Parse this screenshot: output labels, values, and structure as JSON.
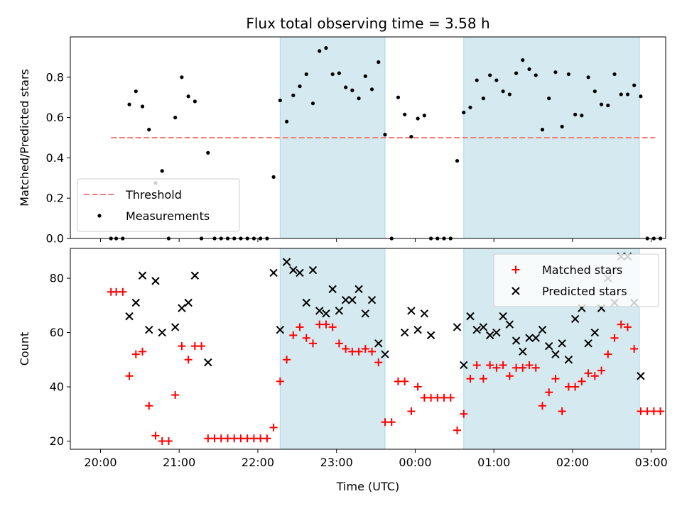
{
  "chart_data": {
    "title": "Flux total observing time = 3.58 h",
    "xlabel": "Time (UTC)",
    "x_ticks": [
      "20:00",
      "21:00",
      "22:00",
      "23:00",
      "00:00",
      "01:00",
      "02:00",
      "03:00"
    ],
    "highlight_spans": [
      {
        "start": "22:17",
        "end": "23:37",
        "color": "#d4eaf0"
      },
      {
        "start": "00:37",
        "end": "02:51",
        "color": "#d4eaf0"
      }
    ],
    "panels": [
      {
        "type": "scatter",
        "ylabel": "Matched/Predicted stars",
        "ylim": [
          0,
          1.0
        ],
        "yticks": [
          "0.0",
          "0.2",
          "0.4",
          "0.6",
          "0.8"
        ],
        "legend_position": "lower-left",
        "threshold": {
          "name": "Threshold",
          "value": 0.5,
          "x_start": "20:08",
          "x_end": "03:03",
          "color": "#ef7f7f"
        },
        "series": [
          {
            "name": "Measurements",
            "color": "#000000",
            "points": [
              [
                "20:08",
                0.0
              ],
              [
                "20:12",
                0.0
              ],
              [
                "20:17",
                0.0
              ],
              [
                "20:22",
                0.665
              ],
              [
                "20:27",
                0.73
              ],
              [
                "20:32",
                0.655
              ],
              [
                "20:37",
                0.54
              ],
              [
                "20:42",
                0.275
              ],
              [
                "20:47",
                0.335
              ],
              [
                "20:52",
                0.0
              ],
              [
                "20:57",
                0.6
              ],
              [
                "21:02",
                0.8
              ],
              [
                "21:07",
                0.705
              ],
              [
                "21:12",
                0.68
              ],
              [
                "21:17",
                0.0
              ],
              [
                "21:22",
                0.425
              ],
              [
                "21:27",
                0.0
              ],
              [
                "21:32",
                0.0
              ],
              [
                "21:37",
                0.0
              ],
              [
                "21:42",
                0.0
              ],
              [
                "21:47",
                0.0
              ],
              [
                "21:52",
                0.0
              ],
              [
                "21:57",
                0.0
              ],
              [
                "22:02",
                0.0
              ],
              [
                "22:07",
                0.0
              ],
              [
                "22:12",
                0.305
              ],
              [
                "22:17",
                0.685
              ],
              [
                "22:22",
                0.58
              ],
              [
                "22:27",
                0.71
              ],
              [
                "22:32",
                0.755
              ],
              [
                "22:37",
                0.815
              ],
              [
                "22:42",
                0.67
              ],
              [
                "22:47",
                0.93
              ],
              [
                "22:52",
                0.945
              ],
              [
                "22:57",
                0.815
              ],
              [
                "23:02",
                0.82
              ],
              [
                "23:07",
                0.75
              ],
              [
                "23:12",
                0.735
              ],
              [
                "23:17",
                0.695
              ],
              [
                "23:22",
                0.805
              ],
              [
                "23:27",
                0.74
              ],
              [
                "23:32",
                0.875
              ],
              [
                "23:37",
                0.515
              ],
              [
                "23:42",
                0.0
              ],
              [
                "23:47",
                0.7
              ],
              [
                "23:52",
                0.615
              ],
              [
                "23:57",
                0.505
              ],
              [
                "00:02",
                0.595
              ],
              [
                "00:07",
                0.61
              ],
              [
                "00:12",
                0.0
              ],
              [
                "00:17",
                0.0
              ],
              [
                "00:22",
                0.0
              ],
              [
                "00:27",
                0.0
              ],
              [
                "00:32",
                0.385
              ],
              [
                "00:37",
                0.625
              ],
              [
                "00:42",
                0.65
              ],
              [
                "00:47",
                0.785
              ],
              [
                "00:52",
                0.695
              ],
              [
                "00:57",
                0.81
              ],
              [
                "01:02",
                0.785
              ],
              [
                "01:07",
                0.73
              ],
              [
                "01:12",
                0.715
              ],
              [
                "01:17",
                0.82
              ],
              [
                "01:22",
                0.885
              ],
              [
                "01:27",
                0.84
              ],
              [
                "01:32",
                0.81
              ],
              [
                "01:37",
                0.54
              ],
              [
                "01:42",
                0.695
              ],
              [
                "01:47",
                0.825
              ],
              [
                "01:52",
                0.555
              ],
              [
                "01:57",
                0.815
              ],
              [
                "02:02",
                0.615
              ],
              [
                "02:07",
                0.61
              ],
              [
                "02:12",
                0.8
              ],
              [
                "02:17",
                0.73
              ],
              [
                "02:22",
                0.665
              ],
              [
                "02:27",
                0.66
              ],
              [
                "02:32",
                0.815
              ],
              [
                "02:37",
                0.715
              ],
              [
                "02:42",
                0.715
              ],
              [
                "02:47",
                0.76
              ],
              [
                "02:52",
                0.705
              ],
              [
                "02:57",
                0.0
              ],
              [
                "03:02",
                0.0
              ],
              [
                "03:07",
                0.0
              ]
            ]
          }
        ]
      },
      {
        "type": "scatter",
        "ylabel": "Count",
        "ylim": [
          17,
          91
        ],
        "yticks": [
          "20",
          "40",
          "60",
          "80"
        ],
        "legend_position": "upper-right",
        "series": [
          {
            "name": "Matched stars",
            "color": "#ff0000",
            "marker": "plus",
            "points": [
              [
                "20:08",
                75
              ],
              [
                "20:12",
                75
              ],
              [
                "20:17",
                75
              ],
              [
                "20:22",
                44
              ],
              [
                "20:27",
                52
              ],
              [
                "20:32",
                53
              ],
              [
                "20:37",
                33
              ],
              [
                "20:42",
                22
              ],
              [
                "20:47",
                20
              ],
              [
                "20:52",
                20
              ],
              [
                "20:57",
                37
              ],
              [
                "21:02",
                55
              ],
              [
                "21:07",
                50
              ],
              [
                "21:12",
                55
              ],
              [
                "21:17",
                55
              ],
              [
                "21:22",
                21
              ],
              [
                "21:27",
                21
              ],
              [
                "21:32",
                21
              ],
              [
                "21:37",
                21
              ],
              [
                "21:42",
                21
              ],
              [
                "21:47",
                21
              ],
              [
                "21:52",
                21
              ],
              [
                "21:57",
                21
              ],
              [
                "22:02",
                21
              ],
              [
                "22:07",
                21
              ],
              [
                "22:12",
                25
              ],
              [
                "22:17",
                42
              ],
              [
                "22:22",
                50
              ],
              [
                "22:27",
                59
              ],
              [
                "22:32",
                62
              ],
              [
                "22:37",
                58
              ],
              [
                "22:42",
                56
              ],
              [
                "22:47",
                63
              ],
              [
                "22:52",
                63
              ],
              [
                "22:57",
                62
              ],
              [
                "23:02",
                56
              ],
              [
                "23:07",
                54
              ],
              [
                "23:12",
                53
              ],
              [
                "23:17",
                53
              ],
              [
                "23:22",
                54
              ],
              [
                "23:27",
                53
              ],
              [
                "23:32",
                49
              ],
              [
                "23:37",
                27
              ],
              [
                "23:42",
                27
              ],
              [
                "23:47",
                42
              ],
              [
                "23:52",
                42
              ],
              [
                "23:57",
                31
              ],
              [
                "00:02",
                40
              ],
              [
                "00:07",
                36
              ],
              [
                "00:12",
                36
              ],
              [
                "00:17",
                36
              ],
              [
                "00:22",
                36
              ],
              [
                "00:27",
                36
              ],
              [
                "00:32",
                24
              ],
              [
                "00:37",
                30
              ],
              [
                "00:42",
                43
              ],
              [
                "00:47",
                48
              ],
              [
                "00:52",
                43
              ],
              [
                "00:57",
                48
              ],
              [
                "01:02",
                47
              ],
              [
                "01:07",
                48
              ],
              [
                "01:12",
                44
              ],
              [
                "01:17",
                47
              ],
              [
                "01:22",
                47
              ],
              [
                "01:27",
                48
              ],
              [
                "01:32",
                47
              ],
              [
                "01:37",
                33
              ],
              [
                "01:42",
                38
              ],
              [
                "01:47",
                43
              ],
              [
                "01:52",
                31
              ],
              [
                "01:57",
                40
              ],
              [
                "02:02",
                40
              ],
              [
                "02:07",
                42
              ],
              [
                "02:12",
                45
              ],
              [
                "02:17",
                44
              ],
              [
                "02:22",
                46
              ],
              [
                "02:27",
                52
              ],
              [
                "02:32",
                58
              ],
              [
                "02:37",
                63
              ],
              [
                "02:42",
                62
              ],
              [
                "02:47",
                54
              ],
              [
                "02:52",
                31
              ],
              [
                "02:57",
                31
              ],
              [
                "03:02",
                31
              ],
              [
                "03:07",
                31
              ]
            ]
          },
          {
            "name": "Predicted stars",
            "color": "#000000",
            "marker": "x",
            "points": [
              [
                "20:22",
                66
              ],
              [
                "20:27",
                71
              ],
              [
                "20:32",
                81
              ],
              [
                "20:37",
                61
              ],
              [
                "20:42",
                79
              ],
              [
                "20:47",
                60
              ],
              [
                "20:57",
                62
              ],
              [
                "21:02",
                69
              ],
              [
                "21:07",
                71
              ],
              [
                "21:12",
                81
              ],
              [
                "21:22",
                49
              ],
              [
                "22:12",
                82
              ],
              [
                "22:17",
                61
              ],
              [
                "22:22",
                86
              ],
              [
                "22:27",
                83
              ],
              [
                "22:32",
                82
              ],
              [
                "22:37",
                71
              ],
              [
                "22:42",
                83
              ],
              [
                "22:47",
                68
              ],
              [
                "22:52",
                67
              ],
              [
                "22:57",
                76
              ],
              [
                "23:02",
                68
              ],
              [
                "23:07",
                72
              ],
              [
                "23:12",
                72
              ],
              [
                "23:17",
                76
              ],
              [
                "23:22",
                67
              ],
              [
                "23:27",
                72
              ],
              [
                "23:32",
                56
              ],
              [
                "23:37",
                52
              ],
              [
                "23:52",
                60
              ],
              [
                "23:57",
                68
              ],
              [
                "00:02",
                61
              ],
              [
                "00:07",
                67
              ],
              [
                "00:12",
                59
              ],
              [
                "00:32",
                62
              ],
              [
                "00:37",
                48
              ],
              [
                "00:42",
                66
              ],
              [
                "00:47",
                61
              ],
              [
                "00:52",
                62
              ],
              [
                "00:57",
                59
              ],
              [
                "01:02",
                60
              ],
              [
                "01:07",
                66
              ],
              [
                "01:12",
                63
              ],
              [
                "01:17",
                57
              ],
              [
                "01:22",
                53
              ],
              [
                "01:27",
                58
              ],
              [
                "01:32",
                58
              ],
              [
                "01:37",
                61
              ],
              [
                "01:42",
                55
              ],
              [
                "01:47",
                52
              ],
              [
                "01:52",
                56
              ],
              [
                "01:57",
                50
              ],
              [
                "02:02",
                65
              ],
              [
                "02:07",
                69
              ],
              [
                "02:12",
                56
              ],
              [
                "02:17",
                60
              ],
              [
                "02:22",
                69
              ],
              [
                "02:27",
                80
              ],
              [
                "02:32",
                71
              ],
              [
                "02:37",
                88
              ],
              [
                "02:42",
                88
              ],
              [
                "02:47",
                71
              ],
              [
                "02:52",
                44
              ]
            ]
          }
        ]
      }
    ]
  }
}
